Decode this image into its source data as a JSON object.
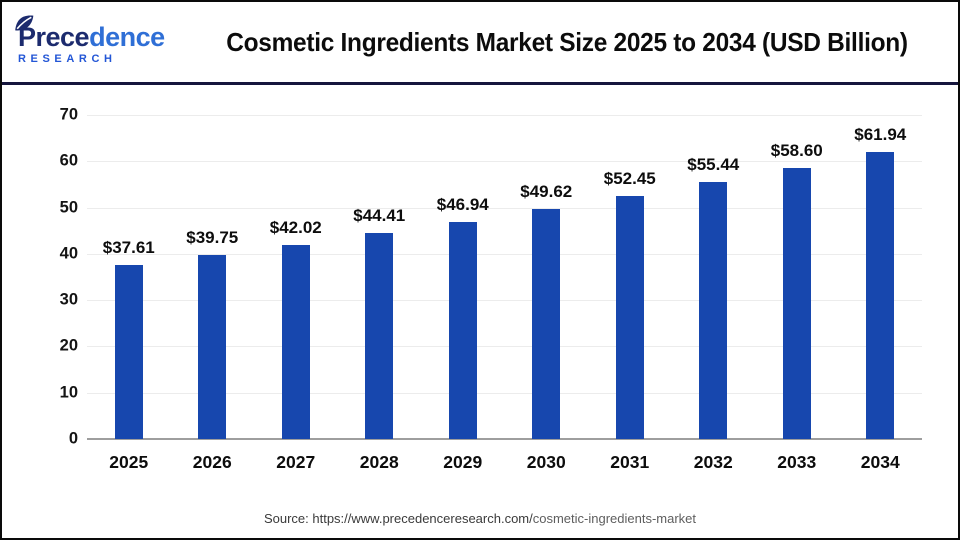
{
  "header": {
    "logo": {
      "wordmark_part1": "Prece",
      "wordmark_part2": "dence",
      "subtitle": "RESEARCH"
    },
    "title": "Cosmetic Ingredients Market Size 2025 to 2034 (USD Billion)"
  },
  "chart_data": {
    "type": "bar",
    "title": "Cosmetic Ingredients Market Size 2025 to 2034 (USD Billion)",
    "categories": [
      "2025",
      "2026",
      "2027",
      "2028",
      "2029",
      "2030",
      "2031",
      "2032",
      "2033",
      "2034"
    ],
    "values": [
      37.61,
      39.75,
      42.02,
      44.41,
      46.94,
      49.62,
      52.45,
      55.44,
      58.6,
      61.94
    ],
    "value_labels": [
      "$37.61",
      "$39.75",
      "$42.02",
      "$44.41",
      "$46.94",
      "$49.62",
      "$52.45",
      "$55.44",
      "$58.60",
      "$61.94"
    ],
    "xlabel": "",
    "ylabel": "",
    "ylim": [
      0,
      70
    ],
    "yticks": [
      0,
      10,
      20,
      30,
      40,
      50,
      60,
      70
    ],
    "grid": true,
    "legend_position": "none",
    "units": "USD Billion"
  },
  "colors": {
    "bar": "#1747ae",
    "divider_navy": "#15153d",
    "logo_dark_navy": "#1c2b6e",
    "logo_blue": "#2f6fd6",
    "research_blue": "#2356d6"
  },
  "icons": {
    "leaf": "leaf-icon"
  },
  "footer": {
    "source_prefix": "Source: https://www.precedenceresearch.com/",
    "source_path": "cosmetic-ingredients-market"
  }
}
